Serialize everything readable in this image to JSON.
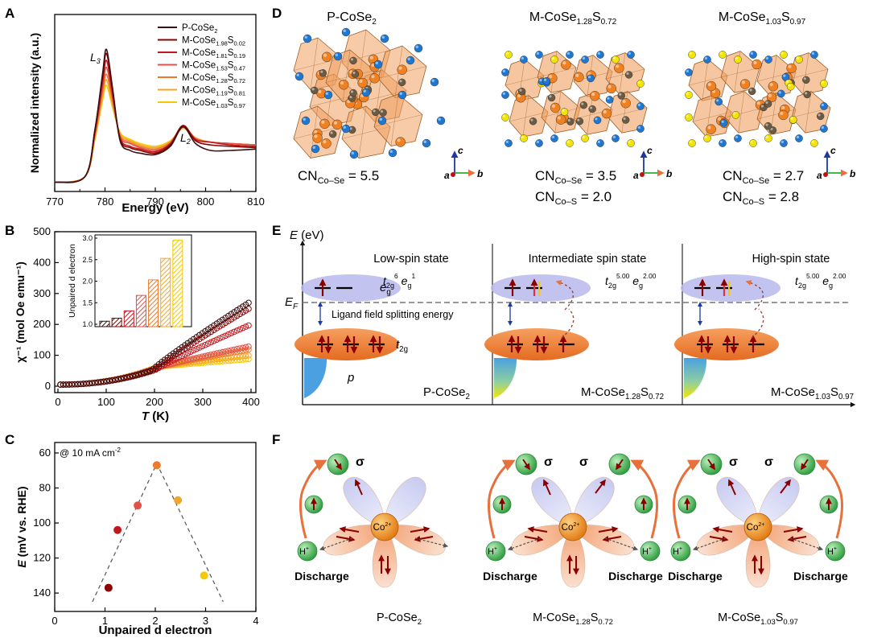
{
  "panel_letters": [
    "A",
    "B",
    "C",
    "D",
    "E",
    "F"
  ],
  "colors": {
    "series": [
      "#3a1010",
      "#8b0000",
      "#c0181f",
      "#e0524a",
      "#ee7a2c",
      "#f5a628",
      "#f5c800"
    ],
    "orange": "#f08a2c",
    "se_atom": "#1f77d0",
    "s_atom": "#f2e300",
    "co_atom": "#6b5b45",
    "eg_band": "#b8b8ec",
    "t2g_band": "#f0884a",
    "p_band": "#4aa0e0",
    "arrow_red": "#8b0000",
    "green_ball": "#3cb84a"
  },
  "chart_data": [
    {
      "panel": "A",
      "type": "line",
      "xlabel": "Energy (eV)",
      "ylabel": "Normalized intensity (a.u.)",
      "xlim": [
        770,
        810
      ],
      "xticks": [
        "770",
        "780",
        "790",
        "800",
        "810"
      ],
      "annotations": [
        {
          "text": "L",
          "sub": "3"
        },
        {
          "text": "L",
          "sub": "2"
        }
      ],
      "legend_position": "top-right",
      "series": [
        {
          "name": "P-CoSe",
          "sub": "2",
          "color": "#3a1010",
          "x": [
            770,
            776,
            778,
            779.5,
            780.3,
            781.5,
            783,
            785,
            787,
            790,
            793,
            795.5,
            798,
            801,
            805,
            810
          ],
          "y": [
            0.02,
            0.06,
            0.4,
            0.8,
            0.98,
            0.7,
            0.32,
            0.25,
            0.23,
            0.22,
            0.28,
            0.42,
            0.3,
            0.25,
            0.25,
            0.26
          ]
        },
        {
          "name": "M-CoSe",
          "sub": "1.98",
          "sub2": "0.02",
          "color": "#8b0000",
          "x": [
            770,
            776,
            778,
            779.5,
            780.3,
            781.5,
            783,
            785,
            787,
            790,
            793,
            795.5,
            798,
            801,
            805,
            810
          ],
          "y": [
            0.02,
            0.06,
            0.4,
            0.78,
            0.95,
            0.69,
            0.33,
            0.27,
            0.25,
            0.23,
            0.29,
            0.43,
            0.32,
            0.29,
            0.28,
            0.27
          ]
        },
        {
          "name": "M-CoSe",
          "sub": "1.81",
          "sub2": "0.19",
          "color": "#c0181f",
          "x": [
            770,
            776,
            778,
            779.5,
            780.3,
            781.5,
            783,
            785,
            787,
            790,
            793,
            795.5,
            798,
            801,
            805,
            810
          ],
          "y": [
            0.02,
            0.06,
            0.38,
            0.74,
            0.9,
            0.66,
            0.34,
            0.28,
            0.26,
            0.24,
            0.3,
            0.43,
            0.33,
            0.31,
            0.29,
            0.28
          ]
        },
        {
          "name": "M-CoSe",
          "sub": "1.53",
          "sub2": "0.47",
          "color": "#e0524a",
          "x": [
            770,
            776,
            778,
            779.5,
            780.3,
            781.5,
            783,
            785,
            787,
            790,
            793,
            795.5,
            798,
            801,
            805,
            810
          ],
          "y": [
            0.02,
            0.06,
            0.37,
            0.7,
            0.85,
            0.63,
            0.35,
            0.3,
            0.27,
            0.25,
            0.3,
            0.42,
            0.33,
            0.31,
            0.3,
            0.29
          ]
        },
        {
          "name": "M-CoSe",
          "sub": "1.28",
          "sub2": "0.72",
          "color": "#ee7a2c",
          "x": [
            770,
            776,
            778,
            779.5,
            780.3,
            781.5,
            783,
            785,
            787,
            790,
            793,
            795.5,
            798,
            801,
            805,
            810
          ],
          "y": [
            0.02,
            0.06,
            0.36,
            0.67,
            0.8,
            0.61,
            0.36,
            0.31,
            0.28,
            0.26,
            0.31,
            0.42,
            0.34,
            0.31,
            0.3,
            0.29
          ]
        },
        {
          "name": "M-CoSe",
          "sub": "1.19",
          "sub2": "0.81",
          "color": "#f5a628",
          "x": [
            770,
            776,
            778,
            779.5,
            780.3,
            781.5,
            783,
            785,
            787,
            790,
            793,
            795.5,
            798,
            801,
            805,
            810
          ],
          "y": [
            0.02,
            0.06,
            0.34,
            0.64,
            0.76,
            0.58,
            0.37,
            0.32,
            0.29,
            0.27,
            0.31,
            0.41,
            0.34,
            0.31,
            0.3,
            0.29
          ]
        },
        {
          "name": "M-CoSe",
          "sub": "1.03",
          "sub2": "0.97",
          "color": "#f5c800",
          "x": [
            770,
            776,
            778,
            779.5,
            780.3,
            781.5,
            783,
            785,
            787,
            790,
            793,
            795.5,
            798,
            801,
            805,
            810
          ],
          "y": [
            0.02,
            0.06,
            0.33,
            0.61,
            0.72,
            0.56,
            0.38,
            0.33,
            0.3,
            0.28,
            0.32,
            0.41,
            0.34,
            0.31,
            0.3,
            0.29
          ]
        }
      ]
    },
    {
      "panel": "B",
      "type": "scatter",
      "xlabel": "T",
      "xlabel_unit": " (K)",
      "ylabel": "χ⁻¹ (mol Oe emu⁻¹)",
      "xlim": [
        0,
        400
      ],
      "ylim": [
        0,
        500
      ],
      "xticks": [
        "0",
        "100",
        "200",
        "300",
        "400"
      ],
      "yticks": [
        "0",
        "100",
        "200",
        "300",
        "400",
        "500"
      ],
      "series": [
        {
          "color": "#3a1010",
          "t_onset": 195,
          "v_onset": 52,
          "v_end": 275
        },
        {
          "color": "#8b0000",
          "t_onset": 200,
          "v_onset": 52,
          "v_end": 255
        },
        {
          "color": "#c0181f",
          "t_onset": 205,
          "v_onset": 55,
          "v_end": 200
        },
        {
          "color": "#e0524a",
          "t_onset": 205,
          "v_onset": 60,
          "v_end": 130
        },
        {
          "color": "#ee7a2c",
          "t_onset": 205,
          "v_onset": 60,
          "v_end": 120
        },
        {
          "color": "#f5a628",
          "t_onset": 205,
          "v_onset": 62,
          "v_end": 100
        },
        {
          "color": "#f5c800",
          "t_onset": 205,
          "v_onset": 62,
          "v_end": 88
        }
      ],
      "inset": {
        "type": "bar",
        "ylabel": "Unpaired d electron",
        "ylim": [
          1.0,
          3.0
        ],
        "yticks": [
          "1.0",
          "1.5",
          "2.0",
          "2.5",
          "3.0"
        ],
        "values": [
          1.07,
          1.14,
          1.31,
          1.67,
          2.03,
          2.53,
          2.95
        ],
        "colors": [
          "#3a1010",
          "#8b0000",
          "#c0181f",
          "#e0524a",
          "#ee7a2c",
          "#f5a628",
          "#f5c800"
        ]
      }
    },
    {
      "panel": "C",
      "type": "scatter",
      "annotation": "@ 10 mA cm",
      "annotation_sup": "-2",
      "xlabel": "Unpaired d electron",
      "ylabel": "E",
      "ylabel_unit": " (mV vs. RHE)",
      "xlim": [
        0,
        4
      ],
      "ylim": [
        145,
        60
      ],
      "xticks": [
        "0",
        "1",
        "2",
        "3",
        "4"
      ],
      "yticks": [
        "60",
        "80",
        "100",
        "120",
        "140"
      ],
      "points": [
        {
          "x": 1.07,
          "y": 137,
          "color": "#8b0000"
        },
        {
          "x": 1.25,
          "y": 104,
          "color": "#c0181f"
        },
        {
          "x": 1.65,
          "y": 90,
          "color": "#e0524a"
        },
        {
          "x": 2.03,
          "y": 67,
          "color": "#ee7a2c"
        },
        {
          "x": 2.45,
          "y": 87,
          "color": "#f5a628"
        },
        {
          "x": 2.97,
          "y": 130,
          "color": "#f5c800"
        }
      ],
      "guide_lines": [
        [
          0.75,
          145
        ],
        [
          2.03,
          66
        ],
        [
          3.35,
          145
        ]
      ]
    }
  ],
  "panel_d": {
    "structures": [
      {
        "name": "P-CoSe",
        "sub": "2",
        "cn": [
          {
            "main": "CN",
            "sub": "Co–Se",
            "value": " = 5.5"
          }
        ]
      },
      {
        "name": "M-CoSe",
        "sub": "1.28",
        "mid": "S",
        "sub2": "0.72",
        "cn": [
          {
            "main": "CN",
            "sub": "Co–Se",
            "value": " = 3.5"
          },
          {
            "main": "CN",
            "sub": "Co–S",
            "value": " = 2.0"
          }
        ]
      },
      {
        "name": "M-CoSe",
        "sub": "1.03",
        "mid": "S",
        "sub2": "0.97",
        "cn": [
          {
            "main": "CN",
            "sub": "Co–Se",
            "value": " = 2.7"
          },
          {
            "main": "CN",
            "sub": "Co–S",
            "value": " = 2.8"
          }
        ]
      }
    ],
    "axes_labels": [
      "c",
      "a",
      "b"
    ]
  },
  "panel_e": {
    "yaxis": "E",
    "yaxis_unit": " (eV)",
    "fermi": "E",
    "fermi_sub": "F",
    "eg": "e",
    "eg_sub": "g",
    "t2g": "t",
    "t2g_sub": "2g",
    "p": "p",
    "ligand_text": "Ligand field splitting energy",
    "states": [
      {
        "title": "Low-spin state",
        "config": [
          [
            "t",
            "2g",
            "6"
          ],
          [
            "e",
            "g",
            "1"
          ]
        ],
        "material": "P-CoSe",
        "sub": "2"
      },
      {
        "title": "Intermediate spin state",
        "config": [
          [
            "t",
            "2g",
            "5.00"
          ],
          [
            "e",
            "g",
            "2.00"
          ]
        ],
        "material": "M-CoSe",
        "sub": "1.28",
        "mid": "S",
        "sub2": "0.72"
      },
      {
        "title": "High-spin state",
        "config": [
          [
            "t",
            "2g",
            "5.00"
          ],
          [
            "e",
            "g",
            "2.00"
          ]
        ],
        "material": "M-CoSe",
        "sub": "1.03",
        "mid": "S",
        "sub2": "0.97"
      }
    ]
  },
  "panel_f": {
    "co_label": "Co",
    "co_sup": "2+",
    "h_label": "H",
    "h_sup": "+",
    "sigma": "σ",
    "discharge": "Discharge",
    "materials": [
      {
        "name": "P-CoSe",
        "sub": "2"
      },
      {
        "name": "M-CoSe",
        "sub": "1.28",
        "mid": "S",
        "sub2": "0.72"
      },
      {
        "name": "M-CoSe",
        "sub": "1.03",
        "mid": "S",
        "sub2": "0.97"
      }
    ]
  }
}
